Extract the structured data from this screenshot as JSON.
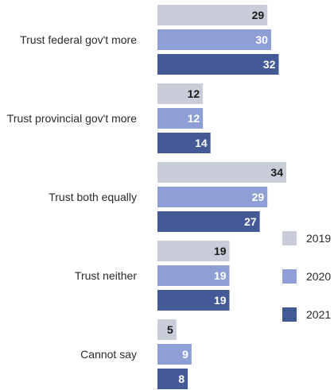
{
  "chart_data": {
    "type": "bar",
    "orientation": "horizontal",
    "title": "",
    "xlabel": "",
    "ylabel": "",
    "categories": [
      "Trust federal gov't more",
      "Trust provincial gov't more",
      "Trust both equally",
      "Trust neither",
      "Cannot say"
    ],
    "series": [
      {
        "name": "2019",
        "color": "#c9cdd9",
        "label_color": "#1a1a1a",
        "values": [
          29,
          12,
          34,
          19,
          5
        ]
      },
      {
        "name": "2020",
        "color": "#8e9fd6",
        "label_color": "#ffffff",
        "values": [
          30,
          12,
          29,
          19,
          9
        ]
      },
      {
        "name": "2021",
        "color": "#445a97",
        "label_color": "#ffffff",
        "values": [
          32,
          14,
          27,
          19,
          8
        ]
      }
    ],
    "xlim": [
      0,
      34
    ],
    "grid": false,
    "legend_position": "right"
  }
}
